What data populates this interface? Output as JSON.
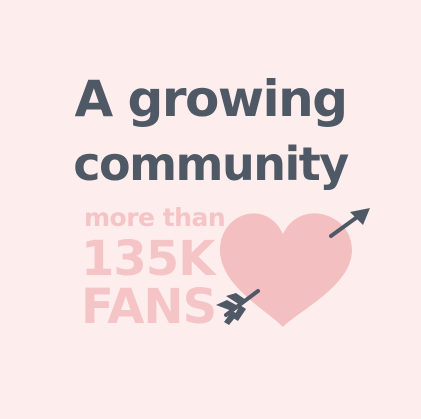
{
  "headline": {
    "line1": "A growing",
    "line2": "community"
  },
  "stats": {
    "prefix": "more than",
    "count": "135K",
    "label": "FANS"
  },
  "graphic": {
    "icon": "heart-with-arrow-icon",
    "heart_color": "#f3bfc1",
    "arrow_color": "#4f5965"
  },
  "colors": {
    "background": "#fdeeed",
    "text_dark": "#4f5965",
    "text_pink": "#f5c4c6"
  }
}
